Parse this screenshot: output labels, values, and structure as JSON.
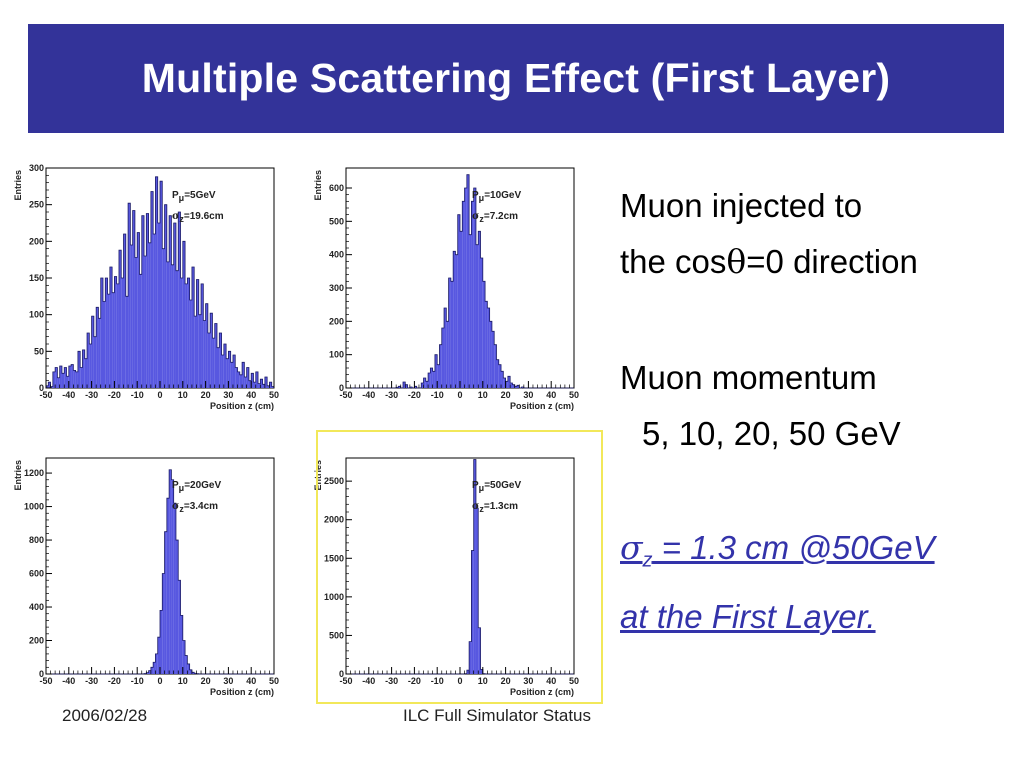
{
  "slide": {
    "title": "Multiple Scattering Effect (First Layer)",
    "desc_line1": "Muon injected to",
    "desc_line2_pre": "the cos",
    "desc_line2_sym": "θ",
    "desc_line2_post": "=0 direction",
    "mom_line1": "Muon momentum",
    "mom_line2": "5, 10, 20, 50 GeV",
    "res_sym": "σ",
    "res_sub": "z",
    "res_line1_post": " = 1.3 cm @50GeV",
    "res_line2": "at the First Layer.",
    "footer_date": "2006/02/28",
    "footer_center": "ILC Full Simulator Status"
  },
  "colors": {
    "title_bg": "#333399",
    "hist_fill": "#5858e0",
    "hist_stroke": "#1a1a66",
    "result_text": "#3333aa",
    "highlight_frame": "#f2e85a"
  },
  "chart_data": [
    {
      "type": "bar",
      "ylabel": "Entries",
      "xlabel": "Position z (cm)",
      "xlim": [
        -50,
        50
      ],
      "ylim": [
        0,
        300
      ],
      "yticks": [
        0,
        50,
        100,
        150,
        200,
        250,
        300
      ],
      "xticks": [
        -50,
        -40,
        -30,
        -20,
        -10,
        0,
        10,
        20,
        30,
        40,
        50
      ],
      "legend_p_pre": "P",
      "legend_p_sub": "μ",
      "legend_p_val": "=5GeV",
      "legend_s_pre": "σ",
      "legend_s_sub": "z",
      "legend_s_val": "=19.6cm",
      "bin_width": 1,
      "bin_start": -50,
      "values": [
        3,
        8,
        2,
        22,
        28,
        14,
        30,
        20,
        28,
        16,
        30,
        32,
        24,
        22,
        50,
        28,
        52,
        40,
        75,
        60,
        98,
        70,
        110,
        95,
        150,
        118,
        150,
        128,
        165,
        130,
        152,
        142,
        188,
        150,
        210,
        125,
        252,
        195,
        242,
        178,
        212,
        155,
        235,
        180,
        238,
        198,
        268,
        210,
        288,
        225,
        282,
        190,
        250,
        172,
        235,
        168,
        225,
        160,
        240,
        150,
        200,
        142,
        150,
        120,
        165,
        98,
        148,
        100,
        142,
        92,
        115,
        75,
        102,
        68,
        88,
        55,
        75,
        45,
        60,
        40,
        50,
        35,
        45,
        28,
        22,
        18,
        35,
        15,
        28,
        10,
        20,
        8,
        22,
        6,
        12,
        5,
        15,
        3,
        8,
        2
      ]
    },
    {
      "type": "bar",
      "ylabel": "Entries",
      "xlabel": "Position z (cm)",
      "xlim": [
        -50,
        50
      ],
      "ylim": [
        0,
        660
      ],
      "yticks": [
        0,
        100,
        200,
        300,
        400,
        500,
        600
      ],
      "xticks": [
        -50,
        -40,
        -30,
        -20,
        -10,
        0,
        10,
        20,
        30,
        40,
        50
      ],
      "legend_p_pre": "P",
      "legend_p_sub": "μ",
      "legend_p_val": "=10GeV",
      "legend_s_pre": "σ",
      "legend_s_sub": "z",
      "legend_s_val": "=7.2cm",
      "bin_width": 1,
      "bin_start": -50,
      "values": [
        0,
        0,
        0,
        0,
        0,
        0,
        0,
        0,
        0,
        0,
        0,
        0,
        0,
        0,
        0,
        0,
        0,
        0,
        0,
        0,
        0,
        0,
        2,
        5,
        0,
        18,
        10,
        0,
        3,
        0,
        5,
        0,
        0,
        15,
        30,
        20,
        45,
        60,
        50,
        100,
        70,
        130,
        180,
        240,
        200,
        330,
        320,
        410,
        400,
        520,
        470,
        560,
        600,
        640,
        460,
        560,
        600,
        430,
        470,
        390,
        320,
        260,
        240,
        200,
        170,
        130,
        85,
        70,
        50,
        30,
        20,
        35,
        15,
        10,
        5,
        8,
        0,
        3,
        0,
        0,
        0,
        0,
        0,
        0,
        0,
        0,
        0,
        0,
        0,
        0,
        0,
        0,
        0,
        0,
        0,
        0,
        0,
        0,
        0,
        0
      ]
    },
    {
      "type": "bar",
      "ylabel": "Entries",
      "xlabel": "Position z (cm)",
      "xlim": [
        -50,
        50
      ],
      "ylim": [
        0,
        1290
      ],
      "yticks": [
        0,
        200,
        400,
        600,
        800,
        1000,
        1200
      ],
      "xticks": [
        -50,
        -40,
        -30,
        -20,
        -10,
        0,
        10,
        20,
        30,
        40,
        50
      ],
      "legend_p_pre": "P",
      "legend_p_sub": "μ",
      "legend_p_val": "=20GeV",
      "legend_s_pre": "σ",
      "legend_s_sub": "z",
      "legend_s_val": "=3.4cm",
      "bin_width": 1,
      "bin_start": -50,
      "values": [
        0,
        0,
        0,
        0,
        0,
        0,
        0,
        0,
        0,
        0,
        0,
        0,
        0,
        0,
        0,
        0,
        0,
        0,
        0,
        0,
        0,
        0,
        0,
        0,
        0,
        0,
        0,
        0,
        0,
        0,
        0,
        0,
        0,
        0,
        0,
        0,
        0,
        0,
        0,
        0,
        0,
        0,
        0,
        3,
        8,
        20,
        40,
        70,
        120,
        220,
        380,
        600,
        850,
        1050,
        1220,
        1160,
        1020,
        800,
        560,
        350,
        200,
        110,
        60,
        25,
        10,
        4,
        2,
        0,
        0,
        0,
        0,
        0,
        0,
        0,
        0,
        0,
        0,
        0,
        0,
        0,
        0,
        0,
        0,
        0,
        0,
        0,
        0,
        0,
        0,
        0,
        0,
        0,
        0,
        0,
        0,
        0,
        0,
        0,
        0
      ]
    },
    {
      "type": "bar",
      "ylabel": "Entries",
      "xlabel": "Position z (cm)",
      "xlim": [
        -50,
        50
      ],
      "ylim": [
        0,
        2800
      ],
      "yticks": [
        0,
        500,
        1000,
        1500,
        2000,
        2500
      ],
      "xticks": [
        -50,
        -40,
        -30,
        -20,
        -10,
        0,
        10,
        20,
        30,
        40,
        50
      ],
      "legend_p_pre": "P",
      "legend_p_sub": "μ",
      "legend_p_val": "=50GeV",
      "legend_s_pre": "σ",
      "legend_s_sub": "z",
      "legend_s_val": "=1.3cm",
      "bin_width": 1,
      "bin_start": -50,
      "values": [
        0,
        0,
        0,
        0,
        0,
        0,
        0,
        0,
        0,
        0,
        0,
        0,
        0,
        0,
        0,
        0,
        0,
        0,
        0,
        0,
        0,
        0,
        0,
        0,
        0,
        0,
        0,
        0,
        0,
        0,
        0,
        0,
        0,
        0,
        0,
        0,
        0,
        0,
        0,
        0,
        0,
        0,
        0,
        0,
        0,
        0,
        0,
        0,
        0,
        0,
        0,
        0,
        5,
        50,
        420,
        1600,
        2780,
        2150,
        600,
        60,
        5,
        0,
        0,
        0,
        0,
        0,
        0,
        0,
        0,
        0,
        0,
        0,
        0,
        0,
        0,
        0,
        0,
        0,
        0,
        0,
        0,
        0,
        0,
        0,
        0,
        0,
        0,
        0,
        0,
        0,
        0,
        0,
        0,
        0,
        0,
        0,
        0,
        0,
        0,
        0
      ]
    }
  ]
}
